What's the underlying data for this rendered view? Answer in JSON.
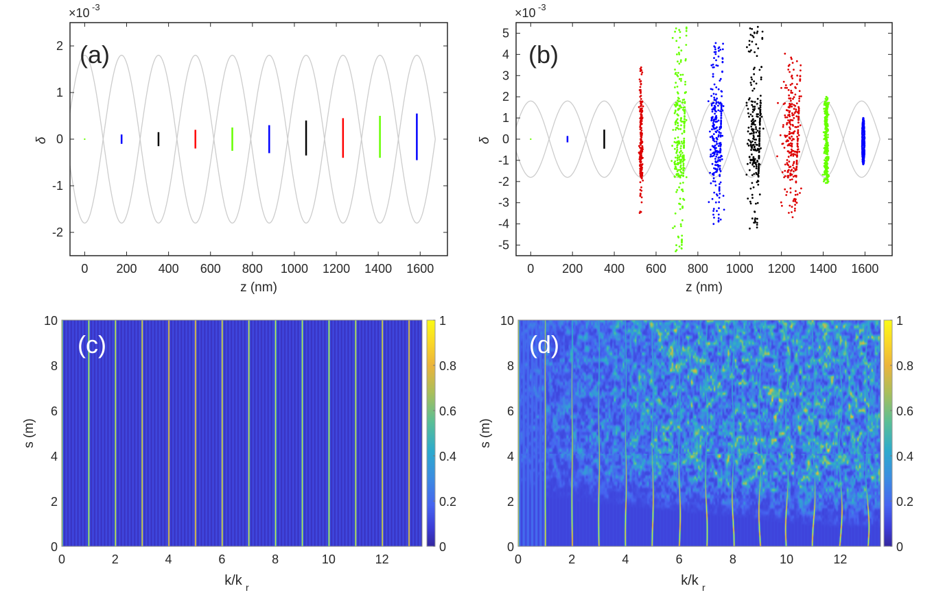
{
  "chart_data": [
    {
      "id": "a",
      "type": "scatter",
      "panel_label": "(a)",
      "title": "",
      "xlabel": "z (nm)",
      "ylabel": "δ",
      "y_exponent_label": "×10",
      "y_exponent": "-3",
      "xlim": [
        -70,
        1730
      ],
      "ylim": [
        -2.5,
        2.5
      ],
      "xticks": [
        0,
        200,
        400,
        600,
        800,
        1000,
        1200,
        1400,
        1600
      ],
      "yticks": [
        -2,
        -1,
        0,
        1,
        2
      ],
      "grid": false,
      "separatrix": {
        "color": "#cccccc",
        "period_nm": 176,
        "center_start_nm": 0,
        "buckets": 10,
        "half_height": 1.8
      },
      "bunches": [
        {
          "z": 0,
          "dmin": -0.02,
          "dmax": 0.02,
          "color": "#66ff00"
        },
        {
          "z": 176,
          "dmin": -0.1,
          "dmax": 0.1,
          "color": "#0000ff"
        },
        {
          "z": 352,
          "dmin": -0.15,
          "dmax": 0.15,
          "color": "#000000"
        },
        {
          "z": 528,
          "dmin": -0.2,
          "dmax": 0.2,
          "color": "#ff0000"
        },
        {
          "z": 704,
          "dmin": -0.25,
          "dmax": 0.25,
          "color": "#66ff00"
        },
        {
          "z": 880,
          "dmin": -0.3,
          "dmax": 0.3,
          "color": "#0000ff"
        },
        {
          "z": 1056,
          "dmin": -0.35,
          "dmax": 0.4,
          "color": "#000000"
        },
        {
          "z": 1232,
          "dmin": -0.4,
          "dmax": 0.45,
          "color": "#ff0000"
        },
        {
          "z": 1408,
          "dmin": -0.4,
          "dmax": 0.5,
          "color": "#66ff00"
        },
        {
          "z": 1584,
          "dmin": -0.45,
          "dmax": 0.55,
          "color": "#0000ff"
        }
      ]
    },
    {
      "id": "b",
      "type": "scatter",
      "panel_label": "(b)",
      "title": "",
      "xlabel": "z (nm)",
      "ylabel": "δ",
      "y_exponent_label": "×10",
      "y_exponent": "-3",
      "xlim": [
        -70,
        1730
      ],
      "ylim": [
        -5.5,
        5.5
      ],
      "xticks": [
        0,
        200,
        400,
        600,
        800,
        1000,
        1200,
        1400,
        1600
      ],
      "yticks": [
        -5,
        -4,
        -3,
        -2,
        -1,
        0,
        1,
        2,
        3,
        4,
        5
      ],
      "grid": false,
      "separatrix": {
        "color": "#cccccc",
        "period_nm": 176,
        "center_start_nm": 0,
        "buckets": 10,
        "half_height": 1.8
      },
      "bunches": [
        {
          "z": 0,
          "dmin": -0.02,
          "dmax": 0.02,
          "spread_nm": 0,
          "n": 1,
          "color": "#66ff00"
        },
        {
          "z": 176,
          "dmin": -0.15,
          "dmax": 0.15,
          "spread_nm": 0,
          "n": 20,
          "color": "#0000ff"
        },
        {
          "z": 352,
          "dmin": -0.45,
          "dmax": 0.45,
          "spread_nm": 0,
          "n": 40,
          "color": "#000000"
        },
        {
          "z": 528,
          "dmin": -3.6,
          "dmax": 3.4,
          "spread_nm": 10,
          "n": 220,
          "color": "#dd0000"
        },
        {
          "z": 710,
          "dmin": -5.3,
          "dmax": 5.4,
          "spread_nm": 40,
          "n": 300,
          "color": "#66ff00"
        },
        {
          "z": 885,
          "dmin": -4.2,
          "dmax": 4.7,
          "spread_nm": 40,
          "n": 280,
          "color": "#0000ff"
        },
        {
          "z": 1065,
          "dmin": -4.3,
          "dmax": 5.3,
          "spread_nm": 50,
          "n": 260,
          "color": "#000000"
        },
        {
          "z": 1245,
          "dmin": -3.7,
          "dmax": 4.1,
          "spread_nm": 55,
          "n": 280,
          "color": "#dd0000"
        },
        {
          "z": 1415,
          "dmin": -2.1,
          "dmax": 2.0,
          "spread_nm": 15,
          "n": 300,
          "color": "#66ff00"
        },
        {
          "z": 1592,
          "dmin": -1.2,
          "dmax": 1.0,
          "spread_nm": 12,
          "n": 300,
          "color": "#0000ff",
          "ring": true
        }
      ]
    },
    {
      "id": "c",
      "type": "heatmap",
      "panel_label": "(c)",
      "title": "",
      "xlabel": "k/k",
      "xlabel_sub": "r",
      "ylabel": "s (m)",
      "xlim": [
        0,
        13.5
      ],
      "ylim": [
        0,
        10
      ],
      "xticks": [
        0,
        2,
        4,
        6,
        8,
        10,
        12
      ],
      "yticks": [
        0,
        2,
        4,
        6,
        8,
        10
      ],
      "colorbar": {
        "range": [
          0,
          1
        ],
        "ticks": [
          0,
          0.2,
          0.4,
          0.6,
          0.8,
          1
        ],
        "colormap": "parula"
      },
      "harmonic_peaks_k": [
        0,
        1,
        2,
        3,
        4,
        5,
        6,
        7,
        8,
        9,
        10,
        11,
        12,
        13
      ],
      "peak_value": 1,
      "background_value": 0.08,
      "turbulence": 0
    },
    {
      "id": "d",
      "type": "heatmap",
      "panel_label": "(d)",
      "title": "",
      "xlabel": "k/k",
      "xlabel_sub": "r",
      "ylabel": "s (m)",
      "xlim": [
        0,
        13.5
      ],
      "ylim": [
        0,
        10
      ],
      "xticks": [
        0,
        2,
        4,
        6,
        8,
        10,
        12
      ],
      "yticks": [
        0,
        2,
        4,
        6,
        8,
        10
      ],
      "colorbar": {
        "range": [
          0,
          1
        ],
        "ticks": [
          0,
          0.2,
          0.4,
          0.6,
          0.8,
          1
        ],
        "colormap": "parula"
      },
      "harmonic_peaks_k": [
        0,
        1,
        2,
        3,
        4,
        5,
        6,
        7,
        8,
        9,
        10,
        11,
        12,
        13
      ],
      "peak_value": 1,
      "background_value": 0.08,
      "turbulence": 1
    }
  ]
}
